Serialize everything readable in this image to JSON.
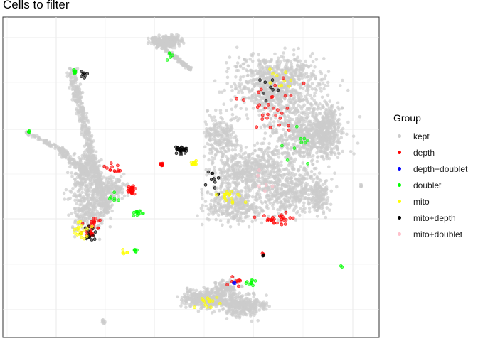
{
  "chart_data": {
    "type": "scatter",
    "title": "Cells to filter",
    "xlabel": "",
    "ylabel": "",
    "grid": true,
    "legend_position": "right",
    "legend": {
      "title": "Group",
      "entries": [
        {
          "name": "kept",
          "color": "#cccccc"
        },
        {
          "name": "depth",
          "color": "#ff0000"
        },
        {
          "name": "depth+doublet",
          "color": "#0000ff"
        },
        {
          "name": "doublet",
          "color": "#00ff00"
        },
        {
          "name": "mito",
          "color": "#ffff00"
        },
        {
          "name": "mito+depth",
          "color": "#000000"
        },
        {
          "name": "mito+doublet",
          "color": "#ffc0cb"
        }
      ]
    }
  }
}
